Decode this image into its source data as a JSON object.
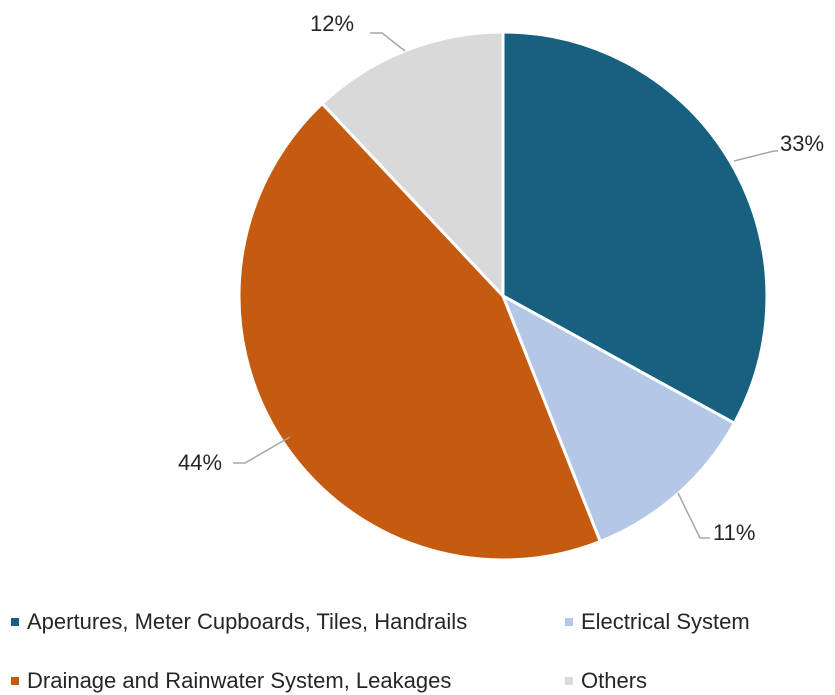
{
  "chart_data": {
    "type": "pie",
    "title": "",
    "legend_position": "bottom",
    "slices": [
      {
        "label": "Apertures, Meter Cupboards, Tiles, Handrails",
        "value": 33,
        "display": "33%",
        "color": "#17607f"
      },
      {
        "label": "Electrical System",
        "value": 11,
        "display": "11%",
        "color": "#b4c7e7"
      },
      {
        "label": "Drainage and Rainwater System, Leakages",
        "value": 44,
        "display": "44%",
        "color": "#c55a11"
      },
      {
        "label": "Others",
        "value": 12,
        "display": "12%",
        "color": "#d9d9d9"
      }
    ]
  },
  "colors": {
    "slice_border": "#ffffff",
    "leader_line": "#a6a6a6",
    "text": "#262626"
  }
}
